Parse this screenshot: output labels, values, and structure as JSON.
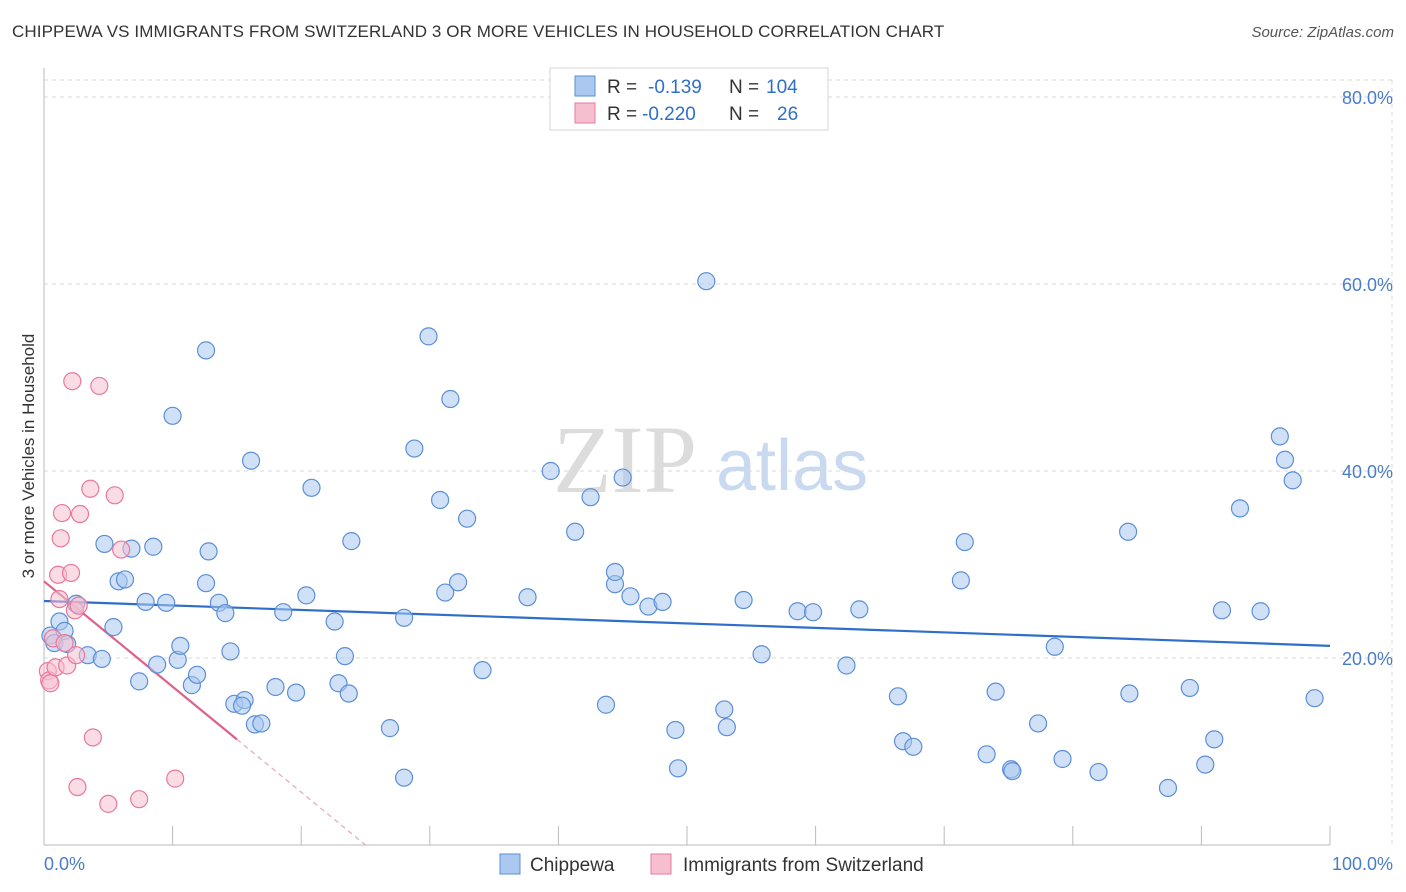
{
  "title": "CHIPPEWA VS IMMIGRANTS FROM SWITZERLAND 3 OR MORE VEHICLES IN HOUSEHOLD CORRELATION CHART",
  "source": "Source: ZipAtlas.com",
  "watermark": {
    "zip": "ZIP",
    "atlas": "atlas"
  },
  "colors": {
    "blue": "#5b8fd6",
    "blue_fill": "#aac8f0",
    "blue_line": "#2f6fc9",
    "pink": "#e8799c",
    "pink_fill": "#f6bfd0",
    "pink_line": "#e0608a",
    "tick_text": "#4a7cc7",
    "grid": "#d9d9d9"
  },
  "legend_top": {
    "rows": [
      {
        "r_label": "R =",
        "r_value": "-0.139",
        "n_label": "N =",
        "n_value": "104"
      },
      {
        "r_label": "R =",
        "r_value": "-0.220",
        "n_label": "N =",
        "n_value": "26"
      }
    ]
  },
  "legend_bottom": [
    "Chippewa",
    "Immigrants from Switzerland"
  ],
  "chart_data": {
    "type": "scatter",
    "title": "CHIPPEWA VS IMMIGRANTS FROM SWITZERLAND 3 OR MORE VEHICLES IN HOUSEHOLD CORRELATION CHART",
    "xlabel": "",
    "ylabel": "3 or more Vehicles in Household",
    "xlim": [
      0,
      100
    ],
    "ylim": [
      0,
      80
    ],
    "x_tick_labels": [
      "0.0%",
      "100.0%"
    ],
    "y_ticks": [
      20,
      40,
      60,
      80
    ],
    "y_tick_labels": [
      "20.0%",
      "40.0%",
      "60.0%",
      "80.0%"
    ],
    "grid": true,
    "legend_position": "top-center",
    "series": [
      {
        "name": "Chippewa",
        "r": -0.139,
        "n": 104,
        "trend": {
          "x": [
            0,
            100
          ],
          "y": [
            26.1,
            21.3
          ]
        },
        "points": [
          [
            0.5,
            22.4
          ],
          [
            0.8,
            21.6
          ],
          [
            1.2,
            23.9
          ],
          [
            1.6,
            22.9
          ],
          [
            1.8,
            21.5
          ],
          [
            2.5,
            25.8
          ],
          [
            3.4,
            20.3
          ],
          [
            4.5,
            19.9
          ],
          [
            4.7,
            32.2
          ],
          [
            5.4,
            23.3
          ],
          [
            5.8,
            28.2
          ],
          [
            6.3,
            28.4
          ],
          [
            6.8,
            31.7
          ],
          [
            7.4,
            17.5
          ],
          [
            7.9,
            26.0
          ],
          [
            8.5,
            31.9
          ],
          [
            8.8,
            19.3
          ],
          [
            9.5,
            25.9
          ],
          [
            10.0,
            45.9
          ],
          [
            10.4,
            19.8
          ],
          [
            10.6,
            21.3
          ],
          [
            11.5,
            17.1
          ],
          [
            11.9,
            18.2
          ],
          [
            12.6,
            28.0
          ],
          [
            12.8,
            31.4
          ],
          [
            13.6,
            25.9
          ],
          [
            14.1,
            24.8
          ],
          [
            14.5,
            20.7
          ],
          [
            14.8,
            15.1
          ],
          [
            15.6,
            15.5
          ],
          [
            16.4,
            12.9
          ],
          [
            16.9,
            13.0
          ],
          [
            18.0,
            16.9
          ],
          [
            18.6,
            24.9
          ],
          [
            19.6,
            16.3
          ],
          [
            20.4,
            26.7
          ],
          [
            20.8,
            38.2
          ],
          [
            22.6,
            23.9
          ],
          [
            22.9,
            17.3
          ],
          [
            23.4,
            20.2
          ],
          [
            23.7,
            16.2
          ],
          [
            23.9,
            32.5
          ],
          [
            12.6,
            52.9
          ],
          [
            16.1,
            41.1
          ],
          [
            26.9,
            12.5
          ],
          [
            28.0,
            7.2
          ],
          [
            28.0,
            24.3
          ],
          [
            29.9,
            54.4
          ],
          [
            28.8,
            42.4
          ],
          [
            30.8,
            36.9
          ],
          [
            31.2,
            27.0
          ],
          [
            31.6,
            47.7
          ],
          [
            32.2,
            28.1
          ],
          [
            32.9,
            34.9
          ],
          [
            34.1,
            18.7
          ],
          [
            37.6,
            26.5
          ],
          [
            39.4,
            40.0
          ],
          [
            41.3,
            33.5
          ],
          [
            42.5,
            37.2
          ],
          [
            43.7,
            15.0
          ],
          [
            44.4,
            27.9
          ],
          [
            44.4,
            29.2
          ],
          [
            45.0,
            39.3
          ],
          [
            45.6,
            26.6
          ],
          [
            47.0,
            25.5
          ],
          [
            48.1,
            26.0
          ],
          [
            49.1,
            12.3
          ],
          [
            49.3,
            8.2
          ],
          [
            51.5,
            60.3
          ],
          [
            52.9,
            14.5
          ],
          [
            53.1,
            12.6
          ],
          [
            54.4,
            26.2
          ],
          [
            55.8,
            20.4
          ],
          [
            58.6,
            25.0
          ],
          [
            59.8,
            24.9
          ],
          [
            62.4,
            19.2
          ],
          [
            63.4,
            25.2
          ],
          [
            66.4,
            15.9
          ],
          [
            66.8,
            11.1
          ],
          [
            67.6,
            10.5
          ],
          [
            71.3,
            28.3
          ],
          [
            71.6,
            32.4
          ],
          [
            73.3,
            9.7
          ],
          [
            74.0,
            16.4
          ],
          [
            75.2,
            8.1
          ],
          [
            75.3,
            7.9
          ],
          [
            77.3,
            13.0
          ],
          [
            78.6,
            21.2
          ],
          [
            79.2,
            9.2
          ],
          [
            82.0,
            7.8
          ],
          [
            84.4,
            16.2
          ],
          [
            84.3,
            33.5
          ],
          [
            87.4,
            6.1
          ],
          [
            89.1,
            16.8
          ],
          [
            90.3,
            8.6
          ],
          [
            91.0,
            11.3
          ],
          [
            91.6,
            25.1
          ],
          [
            93.0,
            36.0
          ],
          [
            94.6,
            25.0
          ],
          [
            96.1,
            43.7
          ],
          [
            96.5,
            41.2
          ],
          [
            97.1,
            39.0
          ],
          [
            98.8,
            15.7
          ],
          [
            15.4,
            14.9
          ]
        ]
      },
      {
        "name": "Immigrants from Switzerland",
        "r": -0.22,
        "n": 26,
        "trend": {
          "x": [
            0,
            15
          ],
          "y": [
            28.2,
            11.3
          ]
        },
        "trend_extension": {
          "x": [
            15,
            25
          ],
          "y": [
            11.3,
            0
          ]
        },
        "points": [
          [
            0.3,
            18.6
          ],
          [
            0.4,
            17.6
          ],
          [
            0.5,
            17.3
          ],
          [
            0.7,
            22.1
          ],
          [
            0.9,
            19.0
          ],
          [
            1.1,
            28.9
          ],
          [
            1.2,
            26.3
          ],
          [
            1.3,
            32.8
          ],
          [
            1.4,
            35.5
          ],
          [
            1.6,
            21.6
          ],
          [
            1.8,
            19.2
          ],
          [
            2.1,
            29.1
          ],
          [
            2.2,
            49.6
          ],
          [
            2.4,
            25.1
          ],
          [
            2.6,
            6.2
          ],
          [
            2.7,
            25.6
          ],
          [
            2.8,
            35.4
          ],
          [
            3.6,
            38.1
          ],
          [
            3.8,
            11.5
          ],
          [
            4.3,
            49.1
          ],
          [
            5.0,
            4.4
          ],
          [
            5.5,
            37.4
          ],
          [
            6.0,
            31.6
          ],
          [
            7.4,
            4.9
          ],
          [
            10.2,
            7.1
          ],
          [
            2.5,
            20.3
          ]
        ]
      }
    ]
  }
}
